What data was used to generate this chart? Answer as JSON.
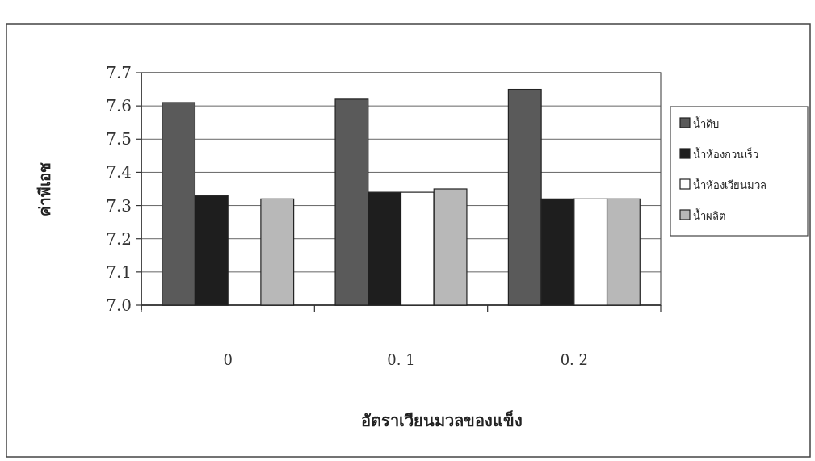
{
  "chart_data": {
    "type": "bar",
    "xlabel": "อัตราเวียนมวลของแข็ง",
    "ylabel": "ค่าพีเอช",
    "categories": [
      "0",
      "0. 1",
      "0. 2"
    ],
    "series": [
      {
        "name": "น้ำดิบ",
        "color": "#5a5a5a",
        "values": [
          7.61,
          7.62,
          7.65
        ]
      },
      {
        "name": "น้ำห้องกวนเร็ว",
        "color": "#1e1e1e",
        "values": [
          7.33,
          7.34,
          7.32
        ]
      },
      {
        "name": "น้ำห้องเวียนมวล",
        "color": "#ffffff",
        "values": [
          null,
          7.34,
          7.32
        ]
      },
      {
        "name": "น้ำผลิต",
        "color": "#b8b8b8",
        "values": [
          7.32,
          7.35,
          7.32
        ]
      }
    ],
    "ylim": [
      7.0,
      7.7
    ],
    "yticks": [
      {
        "value": 7.0,
        "label": "7.0"
      },
      7.1,
      7.2,
      7.3,
      7.4,
      7.5,
      7.6,
      7.7
    ],
    "grid": "y",
    "legend": "right"
  }
}
